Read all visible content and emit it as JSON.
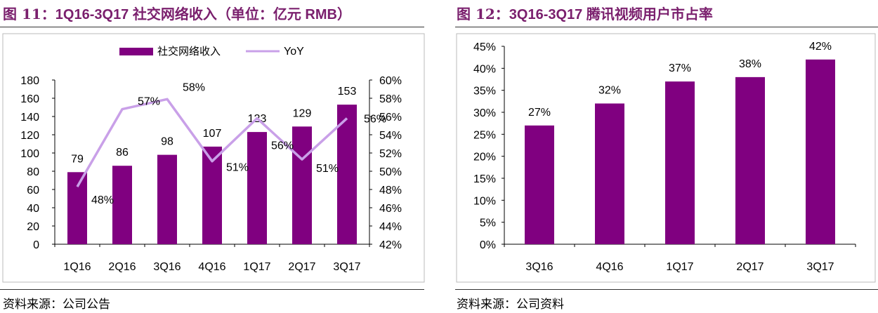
{
  "left": {
    "title_prefix": "图 11：",
    "title_text": "1Q16-3Q17 社交网络收入（单位：亿元 RMB）",
    "source": "资料来源：公司公告",
    "legend_bar": "社交网络收入",
    "legend_line": "YoY",
    "colors": {
      "bar": "#800080",
      "line": "#c9a0e8"
    }
  },
  "right": {
    "title_prefix": "图 12：",
    "title_text": "3Q16-3Q17 腾讯视频用户市占率",
    "source": "资料来源：公司资料",
    "colors": {
      "bar": "#800080"
    }
  },
  "chart_data": [
    {
      "type": "bar",
      "categories": [
        "1Q16",
        "2Q16",
        "3Q16",
        "4Q16",
        "1Q17",
        "2Q17",
        "3Q17"
      ],
      "series": [
        {
          "name": "社交网络收入",
          "type": "bar",
          "axis": "left",
          "values": [
            79,
            86,
            98,
            107,
            123,
            129,
            153
          ],
          "labels": [
            "79",
            "86",
            "98",
            "107",
            "123",
            "129",
            "153"
          ]
        },
        {
          "name": "YoY",
          "type": "line",
          "axis": "right",
          "values": [
            48.3,
            56.8,
            57.9,
            51.1,
            55.8,
            51.3,
            55.8
          ],
          "labels": [
            "48%",
            "57%",
            "58%",
            "51%",
            "56%",
            "51%",
            "56%"
          ]
        }
      ],
      "ylim": [
        0,
        180
      ],
      "y_ticks": [
        "0",
        "20",
        "40",
        "60",
        "80",
        "100",
        "120",
        "140",
        "160",
        "180"
      ],
      "y2lim": [
        42,
        60
      ],
      "y2_ticks": [
        "42%",
        "44%",
        "46%",
        "48%",
        "50%",
        "52%",
        "54%",
        "56%",
        "58%",
        "60%"
      ],
      "legend": "top"
    },
    {
      "type": "bar",
      "categories": [
        "3Q16",
        "4Q16",
        "1Q17",
        "2Q17",
        "3Q17"
      ],
      "values": [
        27,
        32,
        37,
        38,
        42
      ],
      "labels": [
        "27%",
        "32%",
        "37%",
        "38%",
        "42%"
      ],
      "ylim": [
        0,
        45
      ],
      "y_ticks": [
        "0%",
        "5%",
        "10%",
        "15%",
        "20%",
        "25%",
        "30%",
        "35%",
        "40%",
        "45%"
      ]
    }
  ]
}
